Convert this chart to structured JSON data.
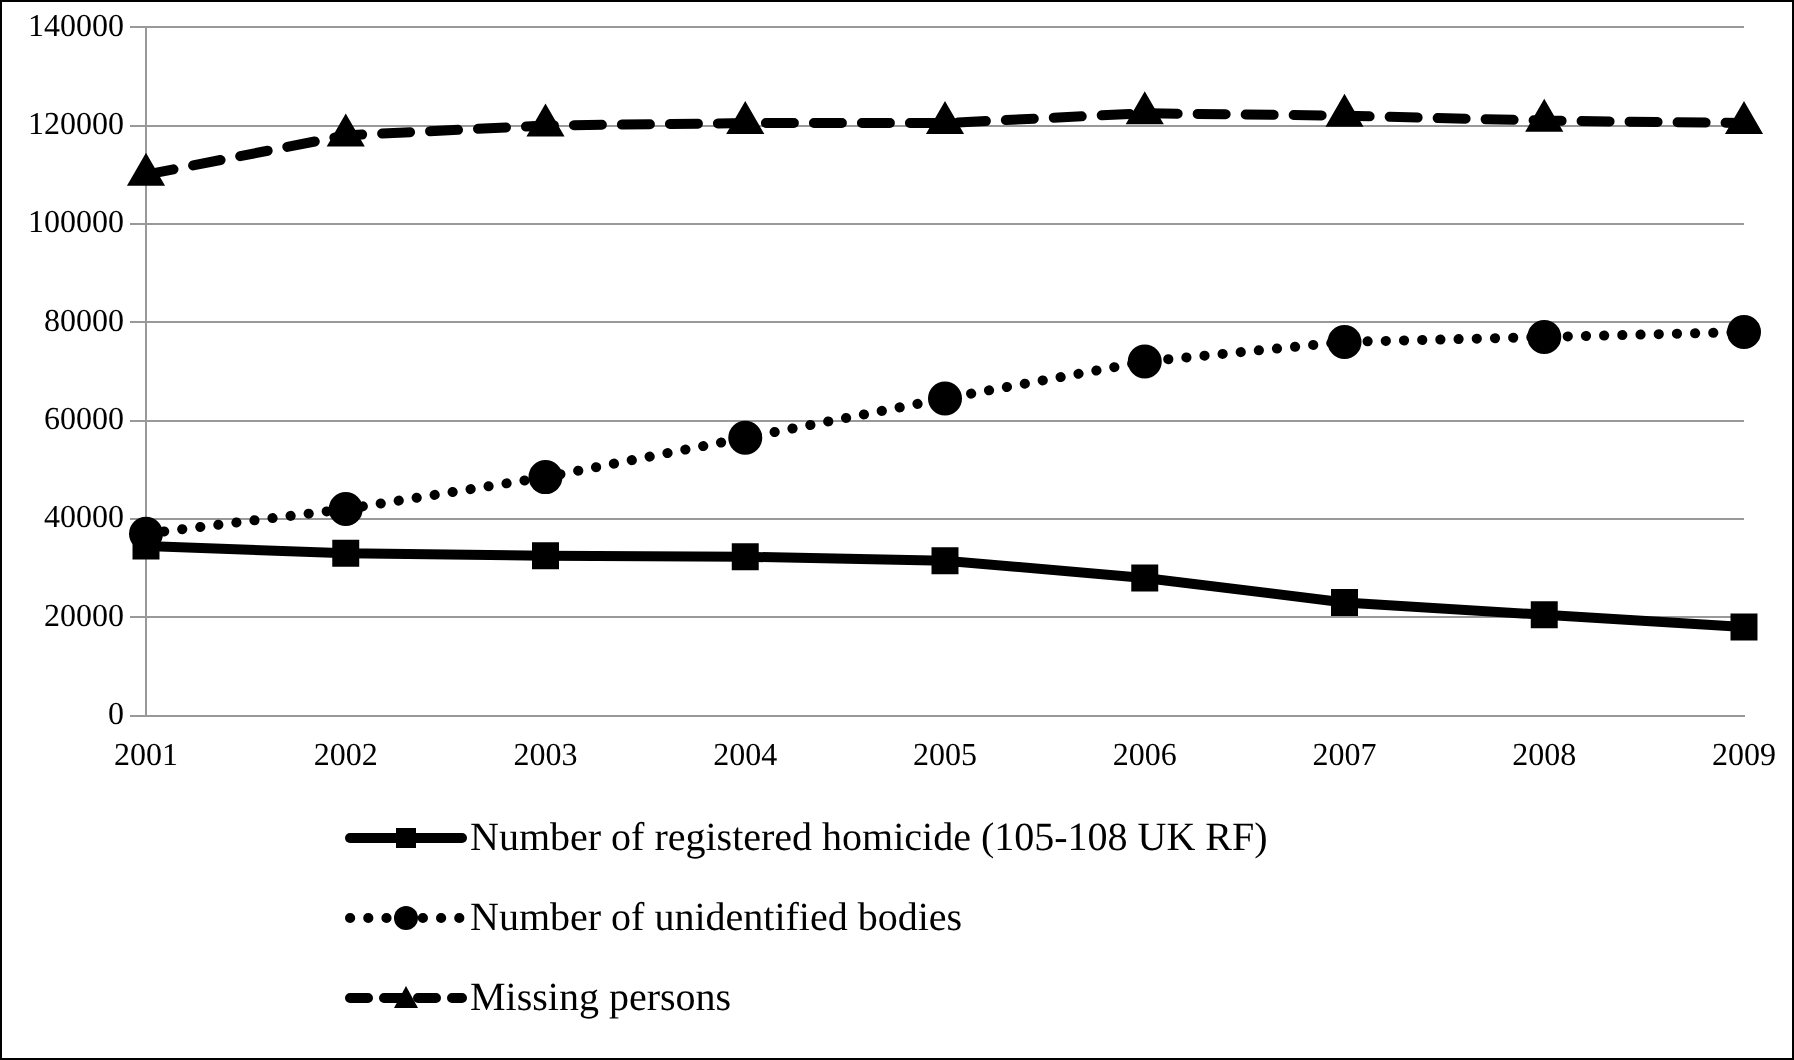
{
  "chart_data": {
    "type": "line",
    "categories": [
      "2001",
      "2002",
      "2003",
      "2004",
      "2005",
      "2006",
      "2007",
      "2008",
      "2009"
    ],
    "series": [
      {
        "name": "Number of registered homicide (105-108 UK RF)",
        "color": "#000000",
        "marker": "square",
        "line_style": "solid",
        "values": [
          34500,
          33000,
          32500,
          32300,
          31500,
          28000,
          23000,
          20500,
          18000
        ]
      },
      {
        "name": "Number of unidentified bodies",
        "color": "#000000",
        "marker": "circle",
        "line_style": "dotted",
        "values": [
          37000,
          42000,
          48500,
          56500,
          64500,
          72000,
          76000,
          77000,
          78000
        ]
      },
      {
        "name": "Missing persons",
        "color": "#000000",
        "marker": "triangle",
        "line_style": "dashed",
        "values": [
          110000,
          118000,
          120000,
          120500,
          120500,
          122500,
          122000,
          121000,
          120500
        ]
      }
    ],
    "ylim": [
      0,
      140000
    ],
    "yticks": [
      0,
      20000,
      40000,
      60000,
      80000,
      100000,
      120000,
      140000
    ],
    "grid": "y",
    "legend": "bottom"
  }
}
